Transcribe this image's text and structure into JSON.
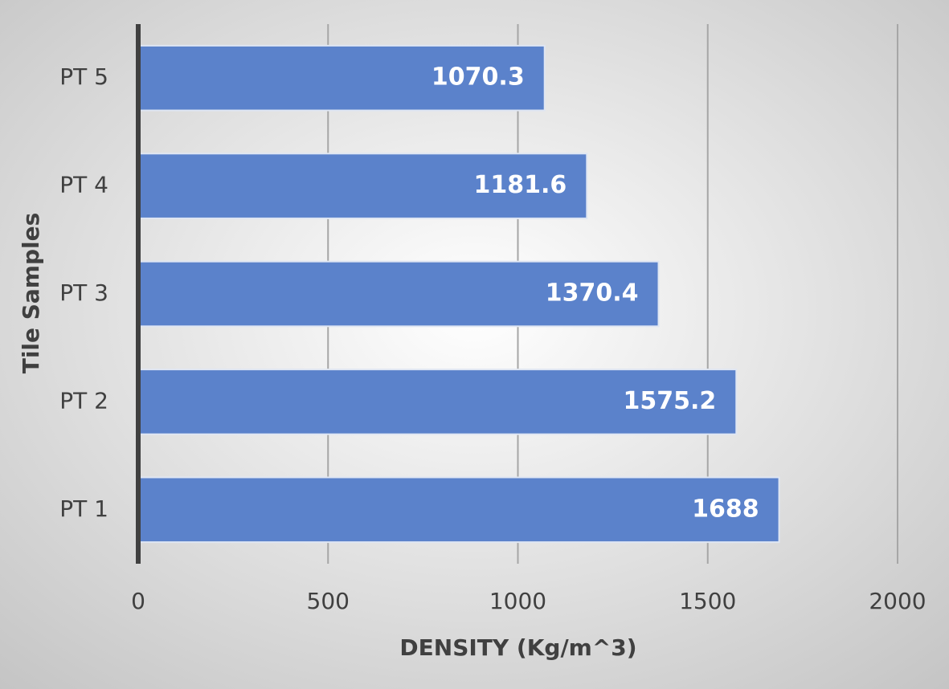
{
  "chart_data": {
    "type": "bar",
    "orientation": "horizontal",
    "categories": [
      "PT 1",
      "PT 2",
      "PT 3",
      "PT 4",
      "PT 5"
    ],
    "values": [
      1688,
      1575.2,
      1370.4,
      1181.6,
      1070.3
    ],
    "color": "#5b82cb",
    "xlim": [
      0,
      2000
    ],
    "xticks": [
      0,
      500,
      1000,
      1500,
      2000
    ],
    "x_label": "DENSITY (Kg/m^3)",
    "y_label": "Tile Samples",
    "grid": true
  }
}
